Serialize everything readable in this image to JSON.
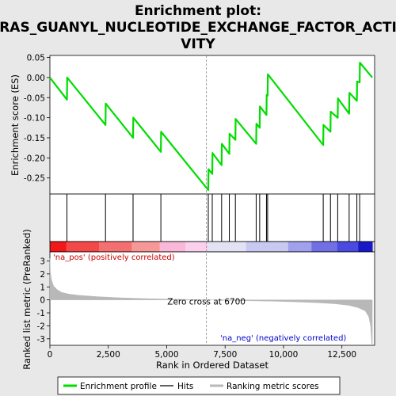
{
  "chart_data": {
    "type": "line",
    "title_lines": [
      "Enrichment plot:",
      "RAS_GUANYL_NUCLEOTIDE_EXCHANGE_FACTOR_ACTI",
      "VITY"
    ],
    "xlabel": "Rank in Ordered Dataset",
    "ylabel_top": "Enrichment score (ES)",
    "ylabel_bottom": "Ranked list metric (PreRanked)",
    "x_ticks": [
      "0",
      "2,500",
      "5,000",
      "7,500",
      "10,000",
      "12,500"
    ],
    "x_tick_values": [
      0,
      2500,
      5000,
      7500,
      10000,
      12500
    ],
    "es_ticks": [
      "0.05",
      "0.00",
      "-0.05",
      "-0.10",
      "-0.15",
      "-0.20",
      "-0.25"
    ],
    "es_tick_values": [
      0.05,
      0.0,
      -0.05,
      -0.1,
      -0.15,
      -0.2,
      -0.25
    ],
    "metric_ticks": [
      "3",
      "2",
      "1",
      "0",
      "-1",
      "-2",
      "-3"
    ],
    "metric_tick_values": [
      3,
      2,
      1,
      0,
      -1,
      -2,
      -3
    ],
    "xlim": [
      0,
      13900
    ],
    "es_ylim": [
      -0.29,
      0.055
    ],
    "metric_ylim": [
      -3.5,
      3.7
    ],
    "enrichment_profile": [
      [
        0,
        0.0
      ],
      [
        730,
        -0.055
      ],
      [
        740,
        0.0
      ],
      [
        2380,
        -0.118
      ],
      [
        2390,
        -0.065
      ],
      [
        3560,
        -0.15
      ],
      [
        3570,
        -0.1
      ],
      [
        4750,
        -0.185
      ],
      [
        4760,
        -0.135
      ],
      [
        6780,
        -0.28
      ],
      [
        6790,
        -0.228
      ],
      [
        6950,
        -0.24
      ],
      [
        6960,
        -0.188
      ],
      [
        7350,
        -0.218
      ],
      [
        7360,
        -0.165
      ],
      [
        7680,
        -0.19
      ],
      [
        7690,
        -0.14
      ],
      [
        7940,
        -0.155
      ],
      [
        7950,
        -0.103
      ],
      [
        8830,
        -0.165
      ],
      [
        8840,
        -0.115
      ],
      [
        8980,
        -0.125
      ],
      [
        8990,
        -0.072
      ],
      [
        9270,
        -0.093
      ],
      [
        9280,
        -0.043
      ],
      [
        9320,
        -0.045
      ],
      [
        9330,
        0.008
      ],
      [
        11700,
        -0.168
      ],
      [
        11710,
        -0.118
      ],
      [
        12010,
        -0.135
      ],
      [
        12020,
        -0.085
      ],
      [
        12320,
        -0.1
      ],
      [
        12330,
        -0.052
      ],
      [
        12810,
        -0.09
      ],
      [
        12820,
        -0.038
      ],
      [
        13140,
        -0.058
      ],
      [
        13150,
        -0.01
      ],
      [
        13260,
        -0.012
      ],
      [
        13270,
        0.037
      ],
      [
        13800,
        0.0
      ]
    ],
    "hits": [
      730,
      2380,
      3560,
      4750,
      6780,
      6950,
      7350,
      7680,
      7940,
      8830,
      8980,
      9270,
      9320,
      11700,
      12010,
      12320,
      12810,
      13140,
      13260
    ],
    "metric_profile": [
      [
        0,
        3.2
      ],
      [
        20,
        2.2
      ],
      [
        60,
        1.6
      ],
      [
        150,
        1.1
      ],
      [
        300,
        0.8
      ],
      [
        500,
        0.58
      ],
      [
        800,
        0.45
      ],
      [
        1200,
        0.36
      ],
      [
        2000,
        0.25
      ],
      [
        3000,
        0.16
      ],
      [
        4000,
        0.1
      ],
      [
        5000,
        0.06
      ],
      [
        6000,
        0.03
      ],
      [
        6700,
        0.0
      ],
      [
        7500,
        -0.03
      ],
      [
        8500,
        -0.07
      ],
      [
        9500,
        -0.1
      ],
      [
        10500,
        -0.15
      ],
      [
        11500,
        -0.22
      ],
      [
        12200,
        -0.3
      ],
      [
        12800,
        -0.42
      ],
      [
        13200,
        -0.6
      ],
      [
        13500,
        -0.85
      ],
      [
        13650,
        -1.3
      ],
      [
        13730,
        -2.0
      ],
      [
        13780,
        -3.4
      ],
      [
        13800,
        -3.4
      ]
    ],
    "heat_colors": [
      "#f01818",
      "#f24848",
      "#f47070",
      "#f79898",
      "#f9b8d8",
      "#fad0ec",
      "#e2e2f4",
      "#c8c8f0",
      "#a0a0ec",
      "#7070e4",
      "#4a4ae0",
      "#1818c8"
    ],
    "heat_breaks": [
      0,
      700,
      2100,
      3500,
      4700,
      5800,
      6750,
      8400,
      10200,
      11200,
      12300,
      13200,
      13800
    ],
    "zero_cross_label": "Zero cross at 6700",
    "zero_cross_value": 6700,
    "pos_label": "'na_pos' (positively correlated)",
    "neg_label": "'na_neg' (negatively correlated)",
    "legend": [
      "Enrichment profile",
      "Hits",
      "Ranking metric scores"
    ],
    "colors": {
      "profile": "#00dd00",
      "hits": "#000000",
      "metric_fill": "#b8b8b8",
      "pos_text": "#cc0000",
      "neg_text": "#0000cc"
    }
  }
}
